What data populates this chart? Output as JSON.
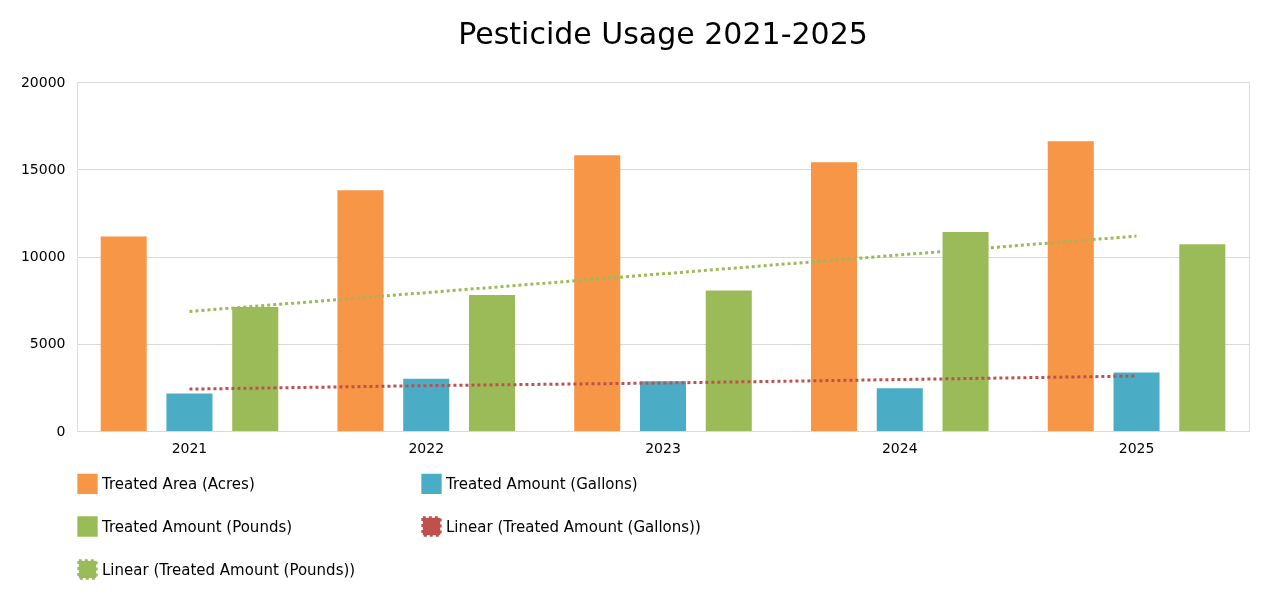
{
  "chart_data": {
    "type": "bar",
    "title": "Pesticide Usage 2021-2025",
    "categories": [
      "2021",
      "2022",
      "2023",
      "2024",
      "2025"
    ],
    "series": [
      {
        "name": "Treated Area (Acres)",
        "color": "#f79646",
        "values": [
          11150,
          13800,
          15800,
          15400,
          16600
        ]
      },
      {
        "name": "Treated Amount (Gallons)",
        "color": "#4bacc6",
        "values": [
          2150,
          3000,
          2850,
          2450,
          3350
        ]
      },
      {
        "name": "Treated Amount (Pounds)",
        "color": "#9bbb59",
        "values": [
          7100,
          7800,
          8050,
          11400,
          10700
        ]
      },
      {
        "name": "Linear (Treated Amount (Gallons))",
        "type": "line",
        "line_style": "dotted",
        "color": "#c0504d",
        "values": [
          2400,
          2600,
          2750,
          2950,
          3150
        ]
      },
      {
        "name": "Linear (Treated Amount (Pounds))",
        "type": "line",
        "line_style": "dotted",
        "color": "#9bbb59",
        "values": [
          6850,
          7930,
          9010,
          10090,
          11170
        ]
      }
    ],
    "ylim": [
      0,
      20000
    ],
    "yticks": [
      0,
      5000,
      10000,
      15000,
      20000
    ],
    "grid": "y",
    "legend": "bottom"
  }
}
